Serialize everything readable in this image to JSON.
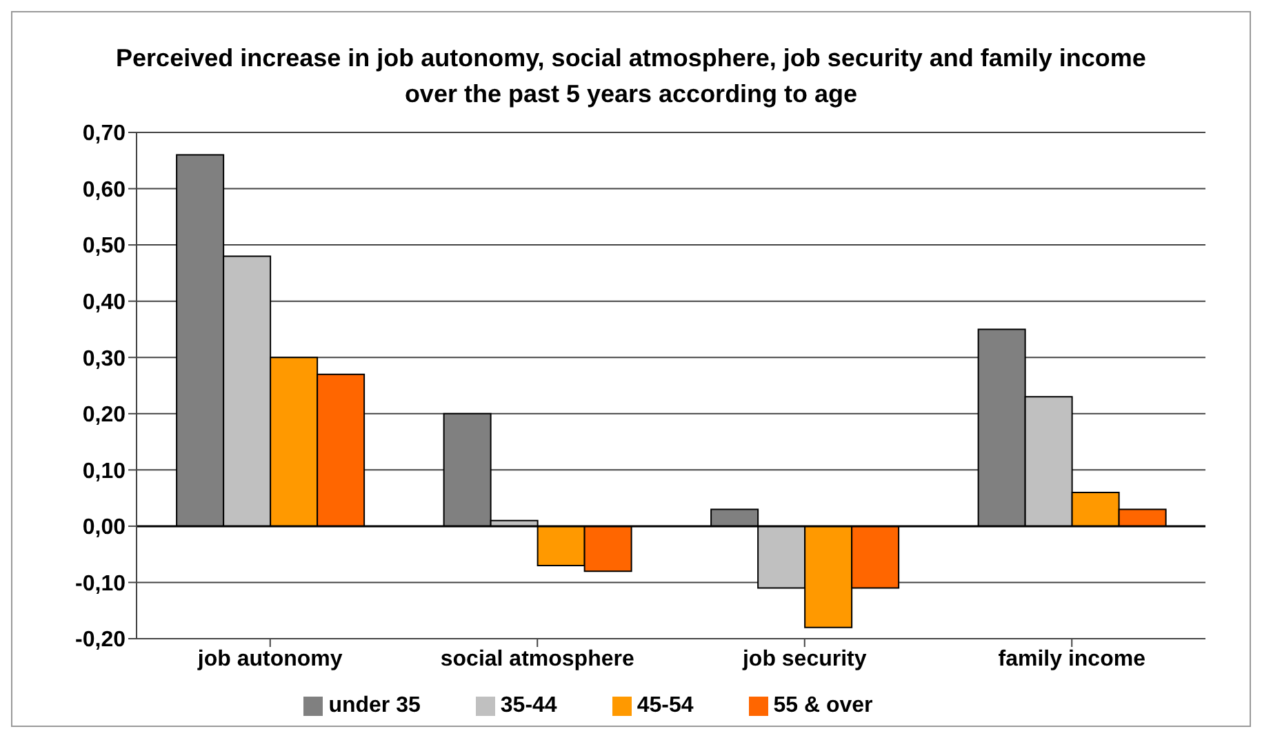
{
  "chart_data": {
    "type": "bar",
    "title": "Perceived increase in job autonomy, social atmosphere, job security and family income over the past 5 years according to age",
    "categories": [
      "job autonomy",
      "social atmosphere",
      "job security",
      "family income"
    ],
    "series": [
      {
        "name": "under 35",
        "color": "#808080",
        "values": [
          0.66,
          0.2,
          0.03,
          0.35
        ]
      },
      {
        "name": "35-44",
        "color": "#c0c0c0",
        "values": [
          0.48,
          0.01,
          -0.11,
          0.23
        ]
      },
      {
        "name": "45-54",
        "color": "#ff9900",
        "values": [
          0.3,
          -0.07,
          -0.18,
          0.06
        ]
      },
      {
        "name": "55 & over",
        "color": "#ff6600",
        "values": [
          0.27,
          -0.08,
          -0.11,
          0.03
        ]
      }
    ],
    "ylim": [
      -0.2,
      0.7
    ],
    "yticks": [
      {
        "value": -0.2,
        "label": "-0,20"
      },
      {
        "value": -0.1,
        "label": "-0,10"
      },
      {
        "value": 0,
        "label": "0,00"
      },
      {
        "value": 0.1,
        "label": "0,10"
      },
      {
        "value": 0.2,
        "label": "0,20"
      },
      {
        "value": 0.3,
        "label": "0,30"
      },
      {
        "value": 0.4,
        "label": "0,40"
      },
      {
        "value": 0.5,
        "label": "0,50"
      },
      {
        "value": 0.6,
        "label": "0,60"
      },
      {
        "value": 0.7,
        "label": "0,70"
      }
    ],
    "grid": "y",
    "legend": "bottom"
  }
}
